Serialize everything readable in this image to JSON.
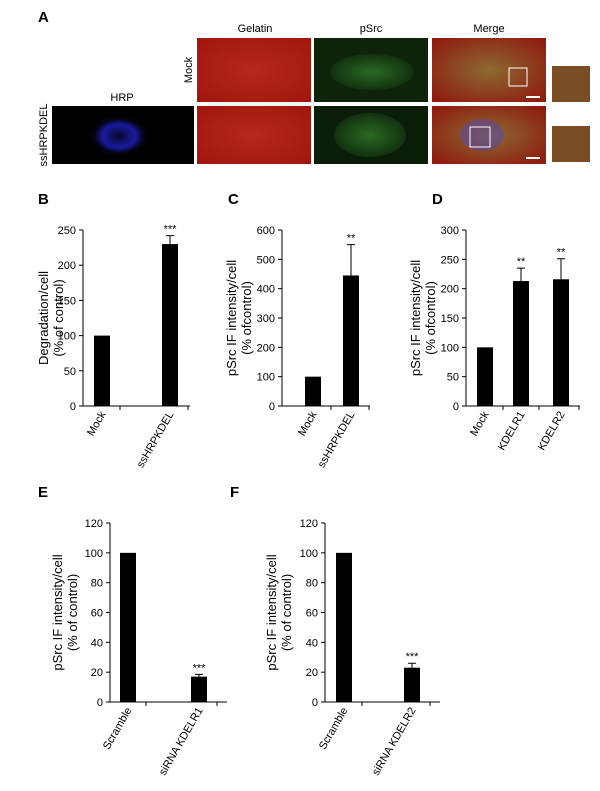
{
  "panel_a": {
    "label": "A",
    "columns": [
      "Gelatin",
      "pSrc",
      "Merge"
    ],
    "rows": [
      "Mock",
      "ssHRPKDEL"
    ],
    "stain": "HRP"
  },
  "chart_data": [
    {
      "type": "bar",
      "label": "B",
      "ylabel": [
        "Degradation/cell",
        "(% of control)"
      ],
      "categories": [
        "Mock",
        "ssHRPKDEL"
      ],
      "values": [
        100,
        230
      ],
      "errors": [
        null,
        12
      ],
      "annotations": [
        null,
        "***"
      ],
      "color": "#000000",
      "ylim": [
        0,
        250
      ],
      "yticks": [
        0,
        50,
        100,
        150,
        200,
        250
      ]
    },
    {
      "type": "bar",
      "label": "C",
      "ylabel": [
        "pSrc IF intensity/cell",
        "(% ofcontrol)"
      ],
      "categories": [
        "Mock",
        "ssHRPKDEL"
      ],
      "values": [
        100,
        445
      ],
      "errors": [
        null,
        105
      ],
      "annotations": [
        null,
        "**"
      ],
      "color": "#000000",
      "ylim": [
        0,
        600
      ],
      "yticks": [
        0,
        100,
        200,
        300,
        400,
        500,
        600
      ]
    },
    {
      "type": "bar",
      "label": "D",
      "ylabel": [
        "pSrc IF intensity/cell",
        "(% ofcontrol)"
      ],
      "categories": [
        "Mock",
        "KDELR1",
        "KDELR2"
      ],
      "values": [
        100,
        213,
        216
      ],
      "errors": [
        null,
        22,
        35
      ],
      "annotations": [
        null,
        "**",
        "**"
      ],
      "color": "#000000",
      "ylim": [
        0,
        300
      ],
      "yticks": [
        0,
        50,
        100,
        150,
        200,
        250,
        300
      ]
    },
    {
      "type": "bar",
      "label": "E",
      "ylabel": [
        "pSrc IF intensity/cell",
        "(% of control)"
      ],
      "categories": [
        "Scramble",
        "siRNA KDELR1"
      ],
      "values": [
        100,
        17
      ],
      "errors": [
        null,
        1.5
      ],
      "annotations": [
        null,
        "***"
      ],
      "color": "#000000",
      "ylim": [
        0,
        120
      ],
      "yticks": [
        0,
        20,
        40,
        60,
        80,
        100,
        120
      ]
    },
    {
      "type": "bar",
      "label": "F",
      "ylabel": [
        "pSrc IF intensity/cell",
        "(% of control)"
      ],
      "categories": [
        "Scramble",
        "siRNA KDELR2"
      ],
      "values": [
        100,
        23
      ],
      "errors": [
        null,
        3
      ],
      "annotations": [
        null,
        "***"
      ],
      "color": "#000000",
      "ylim": [
        0,
        120
      ],
      "yticks": [
        0,
        20,
        40,
        60,
        80,
        100,
        120
      ]
    }
  ]
}
